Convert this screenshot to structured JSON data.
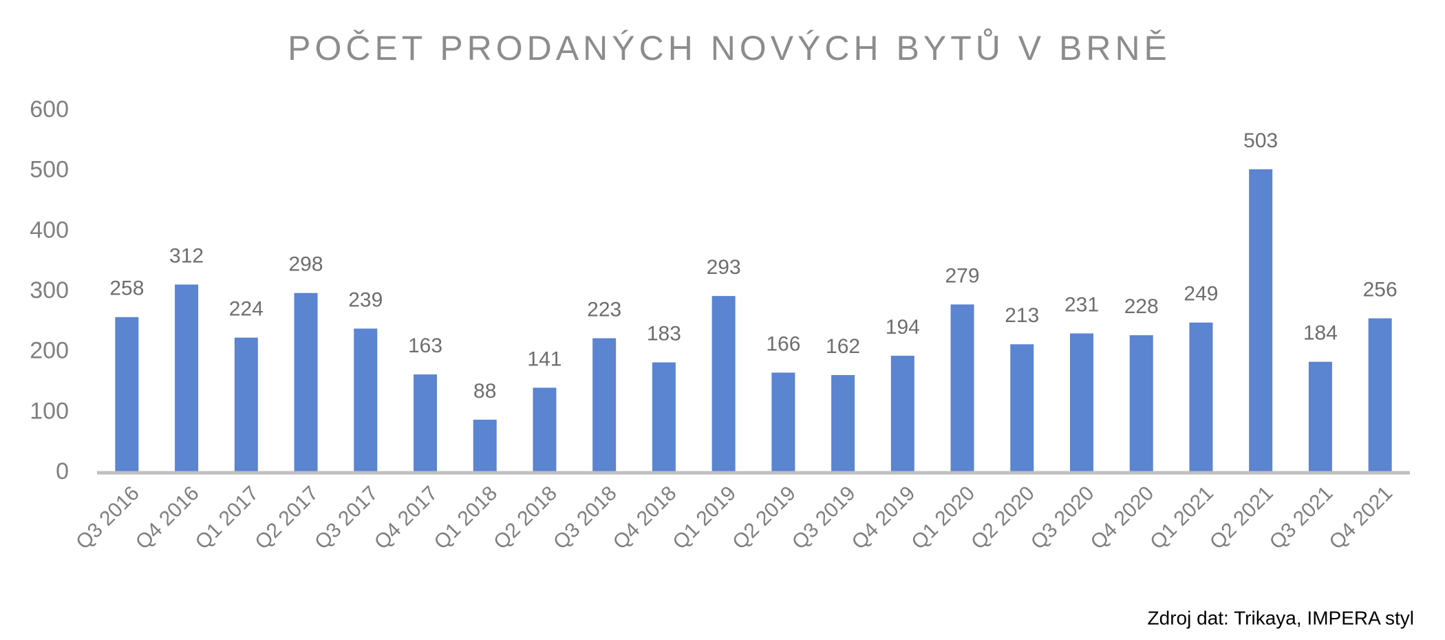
{
  "chart_data": {
    "type": "bar",
    "title": "POČET PRODANÝCH NOVÝCH BYTŮ V BRNĚ",
    "source": "Zdroj dat: Trikaya, IMPERA styl",
    "categories": [
      "Q3 2016",
      "Q4 2016",
      "Q1 2017",
      "Q2 2017",
      "Q3 2017",
      "Q4 2017",
      "Q1 2018",
      "Q2 2018",
      "Q3 2018",
      "Q4 2018",
      "Q1 2019",
      "Q2 2019",
      "Q3 2019",
      "Q4 2019",
      "Q1 2020",
      "Q2 2020",
      "Q3 2020",
      "Q4 2020",
      "Q1 2021",
      "Q2 2021",
      "Q3 2021",
      "Q4 2021"
    ],
    "values": [
      258,
      312,
      224,
      298,
      239,
      163,
      88,
      141,
      223,
      183,
      293,
      166,
      162,
      194,
      279,
      213,
      231,
      228,
      249,
      503,
      184,
      256
    ],
    "color": "#5b84d1",
    "ylim": [
      0,
      600
    ],
    "yticks": [
      0,
      100,
      200,
      300,
      400,
      500,
      600
    ],
    "grid": false
  }
}
